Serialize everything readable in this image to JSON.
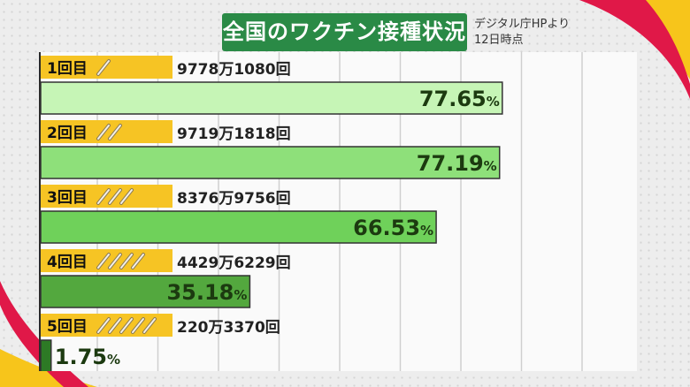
{
  "title": "全国のワクチン接種状況",
  "source_line1": "デジタル庁HPより",
  "source_line2": "12日時点",
  "colors": {
    "title_bg": "#2a8a46",
    "label_bg": "#f6c424",
    "bar_colors": [
      "#c6f5b6",
      "#8ee07a",
      "#6fd15a",
      "#53a83e",
      "#2d7a25"
    ],
    "swoosh_red": "#e01848",
    "swoosh_yellow": "#f7c51b"
  },
  "chart_data": {
    "type": "bar",
    "orientation": "horizontal",
    "xlim": [
      0,
      100
    ],
    "unit": "%",
    "categories": [
      "1回目",
      "2回目",
      "3回目",
      "4回目",
      "5回目"
    ],
    "syringe_counts": [
      1,
      2,
      3,
      4,
      5
    ],
    "counts": [
      "9778万1080回",
      "9719万1818回",
      "8376万9756回",
      "4429万6229回",
      "220万3370回"
    ],
    "values": [
      77.65,
      77.19,
      66.53,
      35.18,
      1.75
    ],
    "value_labels": [
      "77.65",
      "77.19",
      "66.53",
      "35.18",
      "1.75"
    ]
  }
}
